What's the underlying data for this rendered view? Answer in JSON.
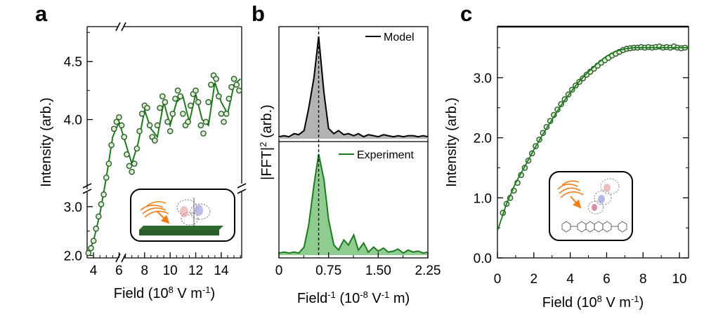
{
  "chart_data": [
    {
      "panel": "a",
      "type": "scatter",
      "xlabel": "Field (10",
      "xlabel_sup": "8",
      "xlabel_tail": " V m",
      "xlabel_sup2": "-1",
      "xlabel_end": ")",
      "ylabel": "Intensity (arb.)",
      "x_ticks": [
        "4",
        "6",
        "8",
        "10",
        "12",
        "14"
      ],
      "y_ticks_lower": [
        "2.0",
        "3.0"
      ],
      "y_ticks_upper": [
        "4.0",
        "4.5"
      ],
      "xlim": [
        3.5,
        15.6
      ],
      "y_lower_lim": [
        1.95,
        3.3
      ],
      "y_upper_lim": [
        3.4,
        4.8
      ],
      "broken_x_axis": true,
      "broken_y_axis": true,
      "series": [
        {
          "marker": "open-circle-green",
          "x": [
            3.6,
            3.8,
            4.0,
            4.2,
            4.4,
            4.6,
            4.8,
            5.0,
            5.2,
            5.4,
            5.6,
            5.8,
            6.0,
            6.2,
            6.4,
            6.6,
            6.8,
            7.0,
            7.2,
            7.4,
            7.6,
            7.8,
            8.0,
            8.2,
            8.4,
            8.6,
            8.8,
            9.0,
            9.2,
            9.4,
            9.6,
            9.8,
            10.0,
            10.2,
            10.4,
            10.6,
            10.8,
            11.0,
            11.2,
            11.4,
            11.6,
            11.8,
            12.0,
            12.2,
            12.4,
            12.6,
            12.8,
            13.0,
            13.2,
            13.4,
            13.6,
            13.8,
            14.0,
            14.2,
            14.4,
            14.6,
            14.8,
            15.0,
            15.2,
            15.4
          ],
          "y": [
            2.05,
            2.15,
            2.3,
            2.55,
            2.8,
            3.05,
            3.25,
            3.5,
            3.62,
            3.78,
            3.92,
            3.98,
            4.02,
            3.95,
            3.85,
            3.7,
            3.6,
            3.55,
            3.62,
            3.75,
            3.9,
            4.05,
            4.12,
            4.1,
            3.95,
            3.85,
            3.82,
            3.95,
            4.1,
            4.2,
            4.15,
            3.98,
            3.9,
            4.05,
            4.18,
            4.25,
            4.2,
            4.05,
            3.95,
            3.98,
            4.12,
            4.22,
            4.25,
            4.15,
            3.95,
            3.88,
            3.98,
            4.15,
            4.3,
            4.38,
            4.35,
            4.2,
            4.05,
            3.98,
            4.05,
            4.18,
            4.28,
            4.35,
            4.3,
            4.25
          ]
        },
        {
          "marker": "line-green",
          "x": [
            3.5,
            4.0,
            4.5,
            5.0,
            5.5,
            6.0,
            6.5,
            7.0,
            7.5,
            8.0,
            8.5,
            9.0,
            9.5,
            10.0,
            10.5,
            11.0,
            11.5,
            12.0,
            12.5,
            13.0,
            13.5,
            14.0,
            14.5,
            15.0,
            15.5
          ],
          "y": [
            2.0,
            2.3,
            2.85,
            3.5,
            3.85,
            3.98,
            3.8,
            3.62,
            3.8,
            4.08,
            3.92,
            3.85,
            4.15,
            3.95,
            4.15,
            4.2,
            3.98,
            4.22,
            4.0,
            3.95,
            4.32,
            4.15,
            4.05,
            4.3,
            4.35
          ]
        }
      ],
      "inset": "molecule-orientation-schematic"
    },
    {
      "panel": "b",
      "type": "area",
      "xlabel": "Field",
      "xlabel_sup": "-1",
      "xlabel_tail": " (10",
      "xlabel_sup2": "-8",
      "xlabel_tail2": " V",
      "xlabel_sup3": "-1",
      "xlabel_end": " m)",
      "ylabel": "|FFT|",
      "ylabel_sup": "2",
      "ylabel_tail": " (arb.)",
      "x_ticks": [
        "0",
        "0.75",
        "1.50",
        "2.25"
      ],
      "xlim": [
        0,
        2.25
      ],
      "peak_marker_x": 0.6,
      "series": [
        {
          "name": "Model",
          "color": "#000000",
          "fill": "#b3b3b3",
          "x": [
            0,
            0.08,
            0.15,
            0.23,
            0.3,
            0.38,
            0.45,
            0.53,
            0.6,
            0.68,
            0.75,
            0.83,
            0.9,
            0.98,
            1.05,
            1.13,
            1.2,
            1.28,
            1.35,
            1.43,
            1.5,
            1.58,
            1.65,
            1.73,
            1.8,
            1.88,
            1.95,
            2.03,
            2.1,
            2.18,
            2.25
          ],
          "y": [
            0.02,
            0.03,
            0.02,
            0.05,
            0.04,
            0.08,
            0.3,
            0.6,
            1.0,
            0.45,
            0.1,
            0.05,
            0.08,
            0.04,
            0.05,
            0.03,
            0.05,
            0.02,
            0.04,
            0.03,
            0.02,
            0.04,
            0.03,
            0.02,
            0.03,
            0.02,
            0.03,
            0.03,
            0.02,
            0.03,
            0.02
          ]
        },
        {
          "name": "Experiment",
          "color": "#1e7a1e",
          "fill": "#8fcc8f",
          "x": [
            0,
            0.08,
            0.15,
            0.23,
            0.3,
            0.38,
            0.45,
            0.53,
            0.6,
            0.68,
            0.75,
            0.83,
            0.9,
            0.98,
            1.05,
            1.13,
            1.2,
            1.28,
            1.35,
            1.43,
            1.5,
            1.58,
            1.65,
            1.73,
            1.8,
            1.88,
            1.95,
            2.03,
            2.1,
            2.18,
            2.25
          ],
          "y": [
            0.02,
            0.03,
            0.02,
            0.03,
            0.02,
            0.08,
            0.3,
            0.7,
            1.0,
            0.75,
            0.35,
            0.1,
            0.05,
            0.15,
            0.1,
            0.2,
            0.05,
            0.12,
            0.03,
            0.08,
            0.04,
            0.07,
            0.03,
            0.04,
            0.06,
            0.02,
            0.05,
            0.03,
            0.04,
            0.02,
            0.03
          ]
        }
      ]
    },
    {
      "panel": "c",
      "type": "scatter",
      "xlabel": "Field (10",
      "xlabel_sup": "8",
      "xlabel_tail": " V m",
      "xlabel_sup2": "-1",
      "xlabel_end": ")",
      "ylabel": "Intensity (arb.)",
      "x_ticks": [
        "0",
        "2",
        "4",
        "6",
        "8",
        "10"
      ],
      "y_ticks": [
        "0.0",
        "1.0",
        "2.0",
        "3.0"
      ],
      "xlim": [
        0,
        10.5
      ],
      "ylim": [
        0,
        3.85
      ],
      "series": [
        {
          "marker": "open-circle-green",
          "x": [
            0.3,
            0.5,
            0.7,
            0.9,
            1.1,
            1.3,
            1.5,
            1.7,
            1.9,
            2.1,
            2.3,
            2.5,
            2.7,
            2.9,
            3.1,
            3.3,
            3.5,
            3.7,
            3.9,
            4.1,
            4.3,
            4.5,
            4.7,
            4.9,
            5.1,
            5.3,
            5.5,
            5.7,
            5.9,
            6.1,
            6.3,
            6.5,
            6.7,
            6.9,
            7.1,
            7.3,
            7.5,
            7.7,
            7.9,
            8.1,
            8.3,
            8.5,
            8.7,
            8.9,
            9.1,
            9.3,
            9.5,
            9.7,
            9.9,
            10.1,
            10.3
          ],
          "y": [
            0.75,
            0.9,
            1.0,
            1.12,
            1.25,
            1.38,
            1.5,
            1.62,
            1.74,
            1.86,
            1.97,
            2.08,
            2.18,
            2.28,
            2.38,
            2.47,
            2.56,
            2.64,
            2.72,
            2.8,
            2.87,
            2.93,
            2.99,
            3.05,
            3.1,
            3.15,
            3.2,
            3.25,
            3.29,
            3.33,
            3.37,
            3.4,
            3.43,
            3.46,
            3.48,
            3.49,
            3.5,
            3.5,
            3.51,
            3.5,
            3.51,
            3.5,
            3.51,
            3.52,
            3.5,
            3.51,
            3.5,
            3.52,
            3.5,
            3.49,
            3.5
          ]
        },
        {
          "marker": "line-green",
          "x": [
            0,
            0.5,
            1,
            1.5,
            2,
            2.5,
            3,
            3.5,
            4,
            4.5,
            5,
            5.5,
            6,
            6.5,
            7,
            7.5,
            8,
            8.5,
            9,
            9.5,
            10,
            10.5
          ],
          "y": [
            0.45,
            0.9,
            1.25,
            1.52,
            1.8,
            2.06,
            2.3,
            2.54,
            2.75,
            2.94,
            3.1,
            3.24,
            3.36,
            3.44,
            3.48,
            3.5,
            3.5,
            3.5,
            3.5,
            3.5,
            3.5,
            3.5
          ]
        }
      ],
      "inset": "molecule-structure-schematic"
    }
  ]
}
